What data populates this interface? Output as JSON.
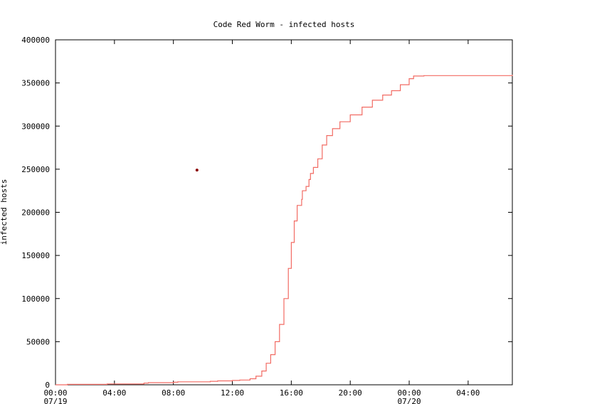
{
  "chart_data": {
    "type": "line",
    "title": "Code Red Worm - infected hosts",
    "xlabel": "",
    "ylabel": "infected hosts",
    "ylim": [
      0,
      400000
    ],
    "xlim_hours": [
      0,
      31
    ],
    "yticks": [
      0,
      50000,
      100000,
      150000,
      200000,
      250000,
      300000,
      350000,
      400000
    ],
    "ytick_labels": [
      "0",
      "50000",
      "100000",
      "150000",
      "200000",
      "250000",
      "300000",
      "350000",
      "400000"
    ],
    "xticks": [
      {
        "hour": 0,
        "label": "00:00",
        "sublabel": "07/19"
      },
      {
        "hour": 4,
        "label": "04:00",
        "sublabel": ""
      },
      {
        "hour": 8,
        "label": "08:00",
        "sublabel": ""
      },
      {
        "hour": 12,
        "label": "12:00",
        "sublabel": ""
      },
      {
        "hour": 16,
        "label": "16:00",
        "sublabel": ""
      },
      {
        "hour": 20,
        "label": "20:00",
        "sublabel": ""
      },
      {
        "hour": 24,
        "label": "00:00",
        "sublabel": "07/20"
      },
      {
        "hour": 28,
        "label": "04:00",
        "sublabel": ""
      }
    ],
    "grid": false,
    "series": [
      {
        "color": "#f26b63",
        "points": [
          [
            0,
            0
          ],
          [
            0.8,
            500
          ],
          [
            3.5,
            1000
          ],
          [
            6.0,
            2000
          ],
          [
            6.3,
            2500
          ],
          [
            8.0,
            3000
          ],
          [
            8.3,
            3500
          ],
          [
            10.5,
            4000
          ],
          [
            11.0,
            4500
          ],
          [
            12.0,
            5000
          ],
          [
            12.5,
            5500
          ],
          [
            13.2,
            7000
          ],
          [
            13.6,
            10000
          ],
          [
            14.0,
            16000
          ],
          [
            14.3,
            25000
          ],
          [
            14.6,
            35000
          ],
          [
            14.9,
            50000
          ],
          [
            15.2,
            70000
          ],
          [
            15.5,
            100000
          ],
          [
            15.8,
            135000
          ],
          [
            16.0,
            165000
          ],
          [
            16.2,
            190000
          ],
          [
            16.4,
            208000
          ],
          [
            16.7,
            215000
          ],
          [
            16.75,
            225000
          ],
          [
            17.0,
            230000
          ],
          [
            17.2,
            238000
          ],
          [
            17.3,
            245000
          ],
          [
            17.5,
            252000
          ],
          [
            17.8,
            262000
          ],
          [
            18.1,
            278000
          ],
          [
            18.4,
            289000
          ],
          [
            18.8,
            297000
          ],
          [
            19.3,
            305000
          ],
          [
            20.0,
            313000
          ],
          [
            20.8,
            322000
          ],
          [
            21.5,
            330000
          ],
          [
            22.2,
            336000
          ],
          [
            22.8,
            341000
          ],
          [
            23.4,
            348000
          ],
          [
            24.0,
            355000
          ],
          [
            24.3,
            358000
          ],
          [
            25.0,
            358500
          ],
          [
            28.0,
            358500
          ],
          [
            29.0,
            358500
          ],
          [
            31.0,
            359500
          ]
        ]
      }
    ],
    "annotations": [
      {
        "type": "point",
        "hour": 9.6,
        "value": 249000,
        "color": "#8b0000"
      }
    ]
  }
}
